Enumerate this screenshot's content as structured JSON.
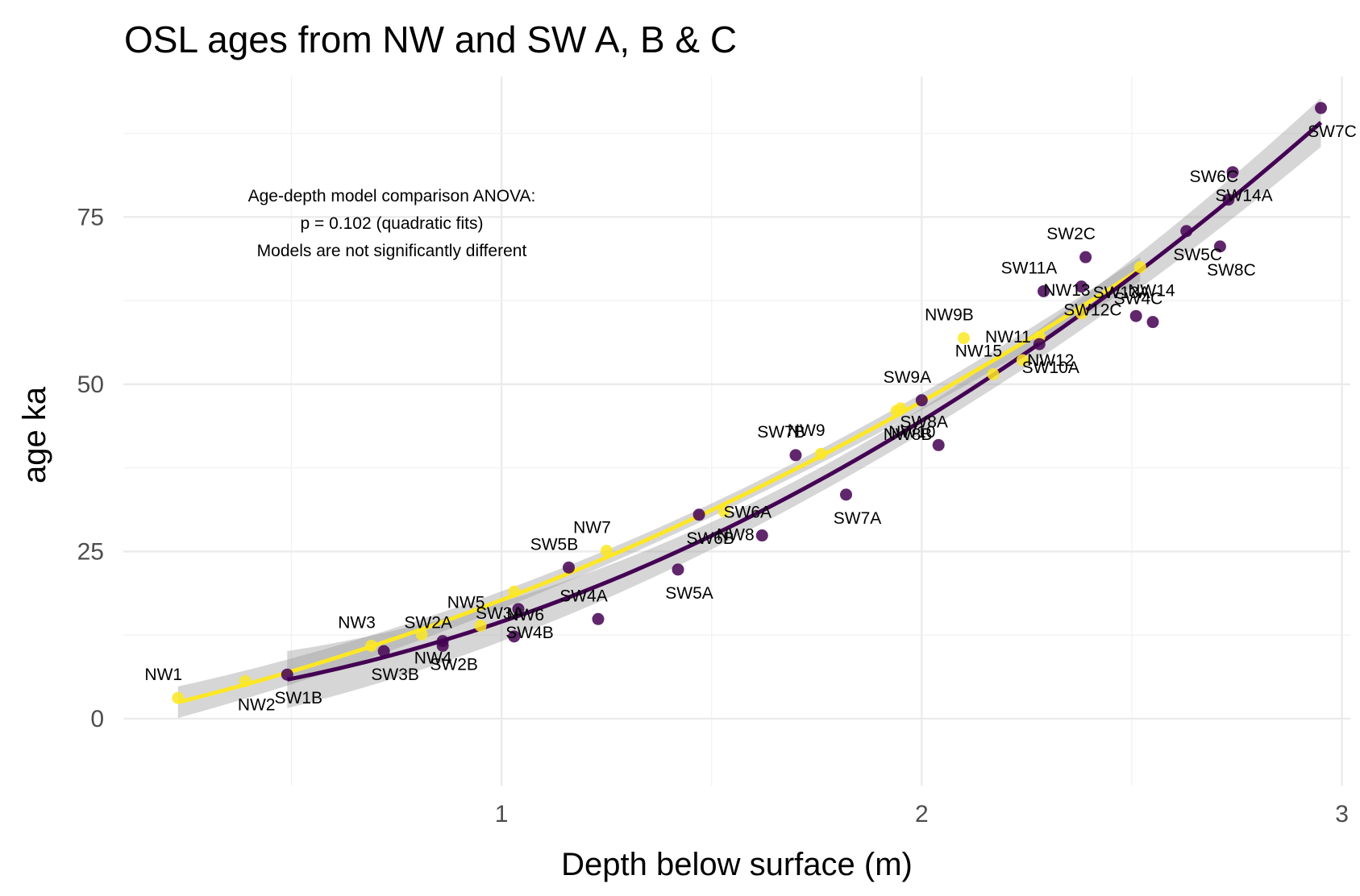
{
  "chart_data": {
    "type": "scatter",
    "title": "OSL ages from NW and SW A, B & C",
    "xlabel": "Depth below surface (m)",
    "ylabel": "age ka",
    "xlim": [
      0.1,
      3.02
    ],
    "ylim": [
      -10,
      96
    ],
    "x_ticks": [
      1,
      2,
      3
    ],
    "y_ticks": [
      0,
      25,
      50,
      75
    ],
    "grid": true,
    "legend": "none",
    "annotation": [
      "Age-depth model comparison ANOVA:",
      "p = 0.102 (quadratic fits)",
      "Models are not significantly different"
    ],
    "series": [
      {
        "color": "#FDE725",
        "points": [
          {
            "label": "NW1",
            "x": 0.23,
            "y": 3.1
          },
          {
            "label": "NW2",
            "x": 0.39,
            "y": 5.6
          },
          {
            "label": "NW3",
            "x": 0.69,
            "y": 10.9
          },
          {
            "label": "NW4",
            "x": 0.81,
            "y": 12.6
          },
          {
            "label": "NW5",
            "x": 0.95,
            "y": 13.9
          },
          {
            "label": "NW6",
            "x": 1.03,
            "y": 19.0
          },
          {
            "label": "NW7",
            "x": 1.25,
            "y": 25.1
          },
          {
            "label": "NW8",
            "x": 1.53,
            "y": 31.0
          },
          {
            "label": "NW9",
            "x": 1.76,
            "y": 39.6
          },
          {
            "label": "NW10",
            "x": 1.95,
            "y": 46.4
          },
          {
            "label": "NW11",
            "x": 2.24,
            "y": 53.6
          },
          {
            "label": "NW12",
            "x": 2.28,
            "y": 57.1
          },
          {
            "label": "NW13",
            "x": 2.38,
            "y": 60.6
          },
          {
            "label": "NW14",
            "x": 2.52,
            "y": 67.5
          },
          {
            "label": "NW15",
            "x": 2.17,
            "y": 51.5
          },
          {
            "label": "NW8B",
            "x": 1.94,
            "y": 46.0
          },
          {
            "label": "NW9B",
            "x": 2.1,
            "y": 56.9
          }
        ]
      },
      {
        "color": "#440154",
        "points": [
          {
            "label": "SW1B",
            "x": 0.49,
            "y": 6.6
          },
          {
            "label": "SW2A",
            "x": 0.86,
            "y": 10.9
          },
          {
            "label": "SW2B",
            "x": 0.86,
            "y": 11.6
          },
          {
            "label": "SW3A",
            "x": 1.03,
            "y": 12.3
          },
          {
            "label": "SW3B",
            "x": 0.72,
            "y": 10.1
          },
          {
            "label": "SW4A",
            "x": 1.23,
            "y": 14.9
          },
          {
            "label": "SW4B",
            "x": 1.04,
            "y": 16.4
          },
          {
            "label": "SW4C",
            "x": 2.55,
            "y": 59.3
          },
          {
            "label": "SW5A",
            "x": 1.42,
            "y": 22.3
          },
          {
            "label": "SW5B",
            "x": 1.16,
            "y": 22.6
          },
          {
            "label": "SW5C",
            "x": 2.63,
            "y": 72.9
          },
          {
            "label": "SW6A",
            "x": 1.62,
            "y": 27.4
          },
          {
            "label": "SW6B",
            "x": 1.47,
            "y": 30.5
          },
          {
            "label": "SW6C",
            "x": 2.73,
            "y": 77.6
          },
          {
            "label": "SW7A",
            "x": 1.82,
            "y": 33.5
          },
          {
            "label": "SW7B",
            "x": 1.7,
            "y": 39.4
          },
          {
            "label": "SW7C",
            "x": 2.95,
            "y": 91.3
          },
          {
            "label": "SW8A",
            "x": 2.04,
            "y": 40.9
          },
          {
            "label": "SW8C",
            "x": 2.71,
            "y": 70.6
          },
          {
            "label": "SW9A",
            "x": 2.0,
            "y": 47.6
          },
          {
            "label": "SW10A",
            "x": 2.28,
            "y": 56.0
          },
          {
            "label": "SW11A",
            "x": 2.29,
            "y": 63.9
          },
          {
            "label": "SW12C",
            "x": 2.38,
            "y": 64.6
          },
          {
            "label": "SW13A",
            "x": 2.51,
            "y": 60.2
          },
          {
            "label": "SW14A",
            "x": 2.74,
            "y": 81.7
          },
          {
            "label": "SW2C",
            "x": 2.39,
            "y": 69.0
          }
        ]
      }
    ]
  }
}
